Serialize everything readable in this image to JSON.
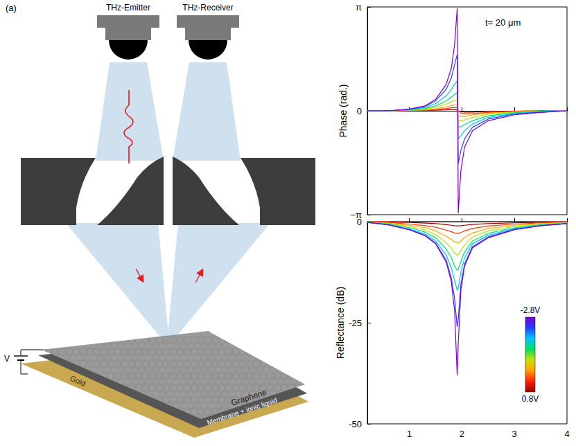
{
  "panel_label": "(a)",
  "diagram": {
    "emitter": "THz-Emitter",
    "receiver": "THz-Receiver",
    "voltage": "V",
    "layers": [
      "Graphene",
      "Membrane + ionic liquid",
      "Gold"
    ]
  },
  "chart_data": [
    {
      "type": "line",
      "annotation": "t= 20 μm",
      "y_label": "Phase (rad.)",
      "x": [
        0.2,
        0.6,
        1.0,
        1.3,
        1.5,
        1.7,
        1.8,
        1.86,
        1.91,
        1.93,
        1.98,
        2.05,
        2.2,
        2.5,
        3.0,
        3.5,
        4.0
      ],
      "xlim": [
        0.2,
        4
      ],
      "xticks": [
        1,
        2,
        3,
        4
      ],
      "ylim": [
        -3.1416,
        3.1416
      ],
      "yticks": [
        {
          "value": -3.1416,
          "label": "−π"
        },
        0,
        {
          "value": 3.1416,
          "label": "π"
        }
      ],
      "grid": false,
      "tick_labels": "y",
      "series": [
        {
          "voltage": 0.8,
          "values": [
            0,
            0,
            0,
            0.01,
            0.02,
            0.03,
            0.04,
            0.04,
            0.03,
            0,
            -0.03,
            -0.04,
            -0.04,
            -0.02,
            -0.01,
            0,
            0
          ]
        },
        {
          "voltage": 0.2,
          "values": [
            0,
            0,
            0.01,
            0.02,
            0.04,
            0.07,
            0.09,
            0.1,
            0.09,
            0,
            -0.07,
            -0.09,
            -0.08,
            -0.05,
            -0.02,
            0,
            0
          ]
        },
        {
          "voltage": -0.3,
          "values": [
            0,
            0,
            0.01,
            0.03,
            0.06,
            0.12,
            0.16,
            0.18,
            0.18,
            -0.15,
            -0.17,
            -0.17,
            -0.13,
            -0.07,
            -0.03,
            -0.01,
            0
          ]
        },
        {
          "voltage": -0.8,
          "values": [
            0,
            0,
            0.02,
            0.05,
            0.1,
            0.2,
            0.27,
            0.32,
            0.33,
            -0.3,
            -0.3,
            -0.28,
            -0.2,
            -0.1,
            -0.04,
            -0.01,
            0
          ]
        },
        {
          "voltage": -1.3,
          "values": [
            0,
            0,
            0.03,
            0.07,
            0.15,
            0.3,
            0.42,
            0.5,
            0.55,
            -0.5,
            -0.48,
            -0.42,
            -0.3,
            -0.15,
            -0.06,
            -0.02,
            0
          ]
        },
        {
          "voltage": -1.8,
          "values": [
            0,
            0,
            0.04,
            0.1,
            0.22,
            0.45,
            0.65,
            0.8,
            0.9,
            -0.85,
            -0.75,
            -0.6,
            -0.4,
            -0.2,
            -0.08,
            -0.03,
            0
          ]
        },
        {
          "voltage": -2.3,
          "values": [
            0,
            0,
            0.05,
            0.13,
            0.3,
            0.65,
            1.0,
            1.4,
            1.7,
            -1.6,
            -1.2,
            -0.85,
            -0.5,
            -0.25,
            -0.1,
            -0.04,
            0
          ]
        },
        {
          "voltage": -2.8,
          "values": [
            0,
            0,
            0.05,
            0.15,
            0.35,
            0.8,
            1.3,
            2.0,
            3.1,
            -3.1,
            -1.8,
            -1.1,
            -0.6,
            -0.3,
            -0.12,
            -0.05,
            0
          ]
        }
      ]
    },
    {
      "type": "line",
      "y_label": "Reflectance (dB)",
      "x": [
        0.2,
        0.6,
        1.0,
        1.3,
        1.5,
        1.7,
        1.8,
        1.86,
        1.91,
        1.93,
        1.98,
        2.05,
        2.2,
        2.5,
        3.0,
        3.5,
        4.0
      ],
      "xlim": [
        0.2,
        4
      ],
      "xticks": [
        1,
        2,
        3,
        4
      ],
      "ylim": [
        -50,
        0
      ],
      "yticks": [
        -50,
        -25,
        0
      ],
      "grid": false,
      "colorbar": {
        "range": [
          -2.8,
          0.8
        ],
        "ticks": [
          {
            "value": -2.8,
            "label": "-2.8V"
          },
          {
            "value": 0.8,
            "label": "0.8V"
          }
        ],
        "colors": [
          "#7b00d4",
          "#2040ff",
          "#00c8ff",
          "#00e060",
          "#c8e000",
          "#ffa000",
          "#ff2000",
          "#a00000"
        ]
      },
      "series": [
        {
          "voltage": 0.8,
          "values": [
            -0.02,
            -0.1,
            -0.2,
            -0.35,
            -0.5,
            -0.75,
            -0.9,
            -1,
            -1.05,
            -1.05,
            -1,
            -0.9,
            -0.7,
            -0.5,
            -0.3,
            -0.15,
            -0.05
          ]
        },
        {
          "voltage": 0.2,
          "values": [
            -0.05,
            -0.2,
            -0.6,
            -1,
            -1.4,
            -2.1,
            -2.5,
            -2.8,
            -2.9,
            -2.9,
            -2.7,
            -2.3,
            -1.7,
            -1.1,
            -0.6,
            -0.3,
            -0.1
          ]
        },
        {
          "voltage": -0.3,
          "values": [
            -0.1,
            -0.4,
            -0.9,
            -1.5,
            -2.3,
            -3.6,
            -4.4,
            -5,
            -5.3,
            -5.2,
            -4.8,
            -4,
            -2.8,
            -1.7,
            -0.9,
            -0.5,
            -0.2
          ]
        },
        {
          "voltage": -0.8,
          "values": [
            -0.1,
            -0.5,
            -1.2,
            -2.1,
            -3.2,
            -5.2,
            -6.6,
            -7.8,
            -8.3,
            -8.2,
            -7.2,
            -5.8,
            -3.8,
            -2.3,
            -1.2,
            -0.6,
            -0.3
          ]
        },
        {
          "voltage": -1.3,
          "values": [
            -0.15,
            -0.6,
            -1.5,
            -2.6,
            -4,
            -6.8,
            -9,
            -11,
            -12,
            -11.8,
            -9.8,
            -7.5,
            -4.8,
            -2.9,
            -1.5,
            -0.8,
            -0.4
          ]
        },
        {
          "voltage": -1.8,
          "values": [
            -0.2,
            -0.7,
            -1.8,
            -3.1,
            -4.8,
            -8.3,
            -11.5,
            -14.5,
            -17,
            -16.5,
            -12.5,
            -9,
            -5.5,
            -3.4,
            -1.7,
            -0.9,
            -0.4
          ]
        },
        {
          "voltage": -2.3,
          "values": [
            -0.2,
            -0.8,
            -2,
            -3.4,
            -5.3,
            -9.5,
            -14,
            -19,
            -26,
            -24,
            -15.5,
            -10.5,
            -6.2,
            -3.8,
            -1.9,
            -1,
            -0.5
          ]
        },
        {
          "voltage": -2.8,
          "values": [
            -0.2,
            -0.8,
            -2,
            -3.5,
            -5.5,
            -10,
            -15,
            -22,
            -38,
            -30,
            -17,
            -11,
            -6.5,
            -4,
            -2,
            -1,
            -0.5
          ]
        }
      ]
    }
  ]
}
